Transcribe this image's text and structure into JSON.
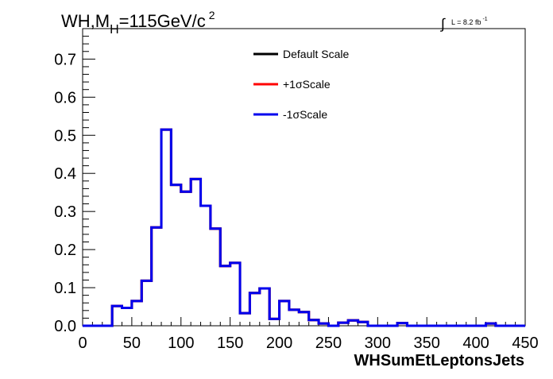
{
  "title": {
    "main": "WH,M",
    "sub": "H",
    "rest": "=115GeV/c",
    "sup": "2"
  },
  "lumi": {
    "integral": "∫",
    "text": "L = 8.2 fb",
    "sup": "-1"
  },
  "chart_data": {
    "type": "line",
    "xlabel": "WHSumEtLeptonsJets",
    "ylabel": "",
    "xlim": [
      0,
      450
    ],
    "ylim": [
      0,
      0.78
    ],
    "xticks": [
      0,
      50,
      100,
      150,
      200,
      250,
      300,
      350,
      400,
      450
    ],
    "yticks": [
      0.0,
      0.1,
      0.2,
      0.3,
      0.4,
      0.5,
      0.6,
      0.7
    ],
    "ytick_labels": [
      "0.0",
      "0.1",
      "0.2",
      "0.3",
      "0.4",
      "0.5",
      "0.6",
      "0.7"
    ],
    "legend_position": "top-center",
    "bin_edges": [
      0,
      10,
      20,
      30,
      40,
      50,
      60,
      70,
      80,
      90,
      100,
      110,
      120,
      130,
      140,
      150,
      160,
      170,
      180,
      190,
      200,
      210,
      220,
      230,
      240,
      250,
      260,
      270,
      280,
      290,
      300,
      310,
      320,
      330,
      340,
      350,
      360,
      370,
      380,
      390,
      400,
      410,
      420,
      430,
      440,
      450
    ],
    "series": [
      {
        "name": "Default Scale",
        "color": "#000000",
        "values": [
          0,
          0,
          0,
          0.052,
          0.047,
          0.065,
          0.118,
          0.258,
          0.515,
          0.37,
          0.352,
          0.385,
          0.315,
          0.255,
          0.157,
          0.165,
          0.033,
          0.086,
          0.098,
          0.018,
          0.065,
          0.042,
          0.036,
          0.015,
          0.006,
          0,
          0.008,
          0.014,
          0.01,
          0,
          0,
          0,
          0.007,
          0,
          0,
          0,
          0,
          0,
          0,
          0,
          0,
          0.006,
          0,
          0,
          0
        ],
        "line_width": 3
      },
      {
        "name": "+1σScale",
        "color": "#ff0000",
        "values": [
          0,
          0,
          0,
          0.052,
          0.047,
          0.065,
          0.118,
          0.258,
          0.515,
          0.37,
          0.352,
          0.385,
          0.315,
          0.255,
          0.157,
          0.165,
          0.033,
          0.086,
          0.098,
          0.018,
          0.065,
          0.042,
          0.036,
          0.015,
          0.006,
          0,
          0.008,
          0.014,
          0.01,
          0,
          0,
          0,
          0.007,
          0,
          0,
          0,
          0,
          0,
          0,
          0,
          0,
          0.006,
          0,
          0,
          0
        ],
        "line_width": 3
      },
      {
        "name": "-1σScale",
        "color": "#0000ee",
        "values": [
          0,
          0,
          0,
          0.052,
          0.047,
          0.065,
          0.118,
          0.258,
          0.515,
          0.37,
          0.352,
          0.385,
          0.315,
          0.255,
          0.157,
          0.165,
          0.033,
          0.086,
          0.098,
          0.018,
          0.065,
          0.042,
          0.036,
          0.015,
          0.006,
          0,
          0.008,
          0.014,
          0.01,
          0,
          0,
          0,
          0.007,
          0,
          0,
          0,
          0,
          0,
          0,
          0,
          0,
          0.006,
          0,
          0,
          0
        ],
        "line_width": 3
      }
    ]
  }
}
